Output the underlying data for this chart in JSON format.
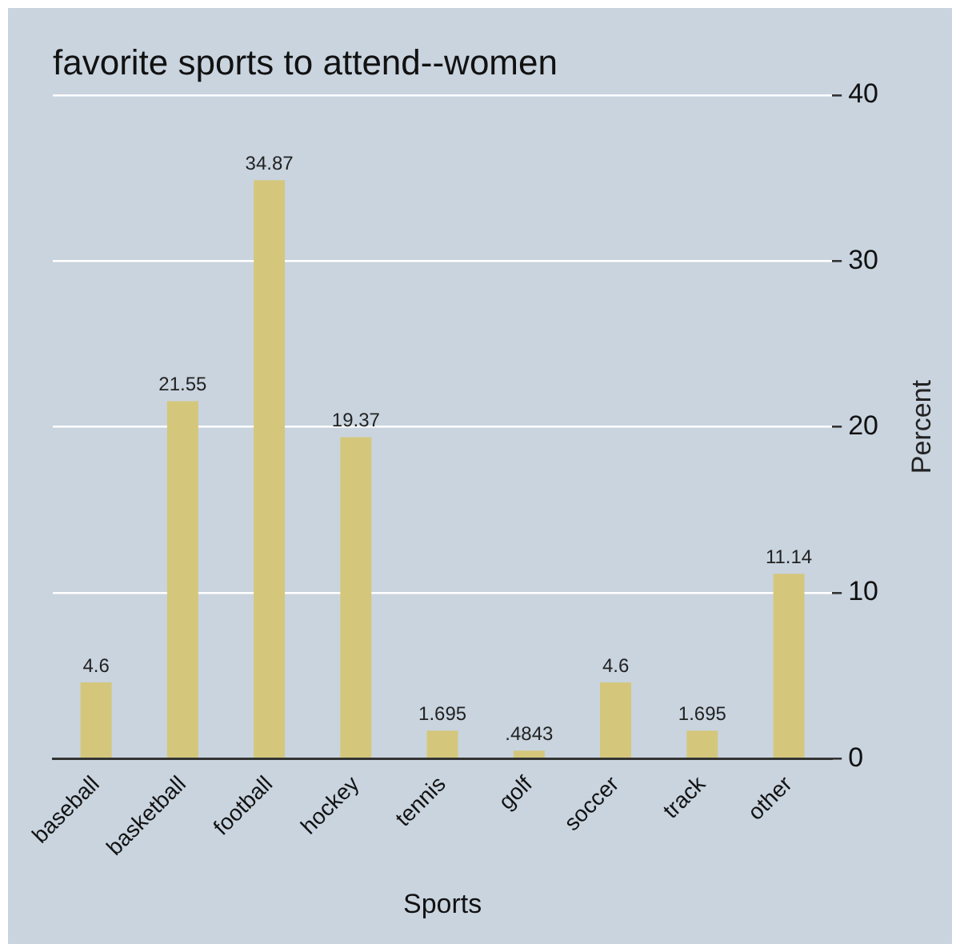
{
  "chart_data": {
    "type": "bar",
    "title": "favorite sports to attend--women",
    "xlabel": "Sports",
    "ylabel": "Percent",
    "categories": [
      "baseball",
      "basketball",
      "football",
      "hockey",
      "tennis",
      "golf",
      "soccer",
      "track",
      "other"
    ],
    "values": [
      4.6,
      21.55,
      34.87,
      19.37,
      1.695,
      0.4843,
      4.6,
      1.695,
      11.14
    ],
    "value_labels": [
      "4.6",
      "21.55",
      "34.87",
      "19.37",
      "1.695",
      ".4843",
      "4.6",
      "1.695",
      "11.14"
    ],
    "color": "#d4c77c",
    "ylim": [
      0,
      40
    ],
    "yticks": [
      0,
      10,
      20,
      30,
      40
    ],
    "grid": "y",
    "legend": false
  }
}
